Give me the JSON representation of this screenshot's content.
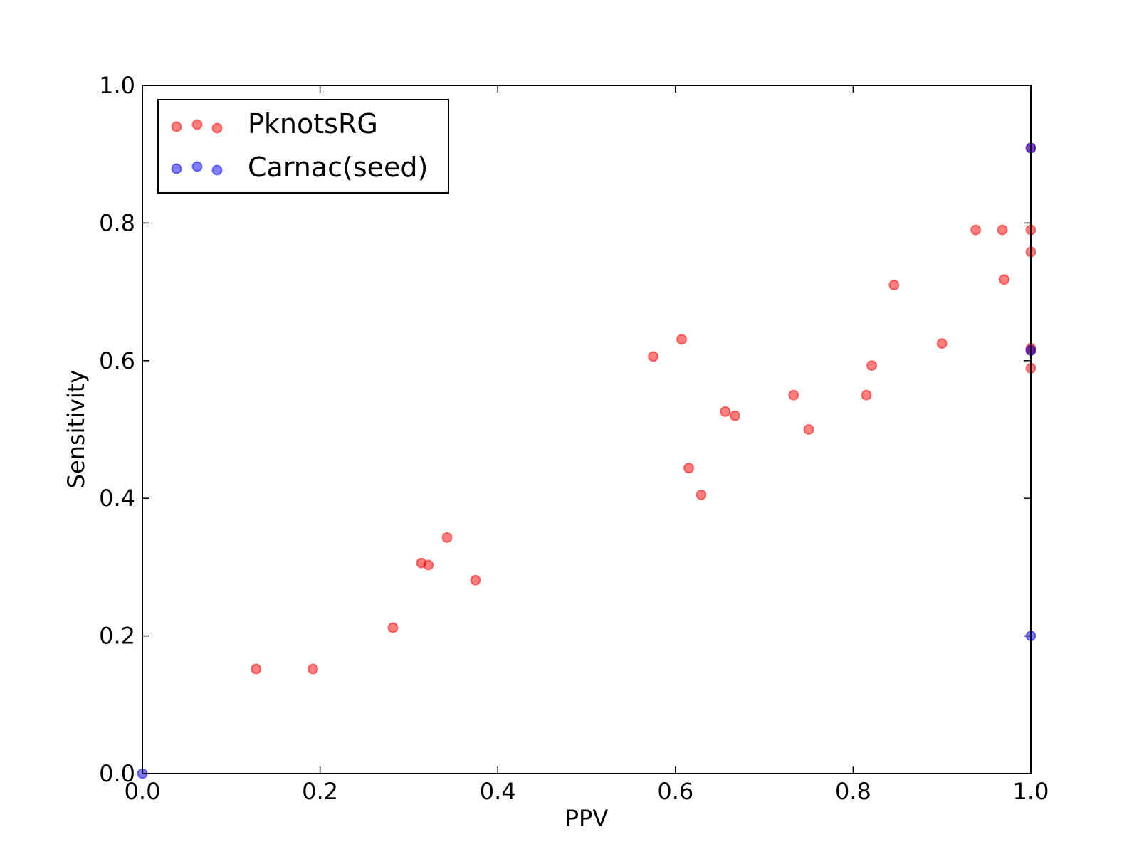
{
  "chart_data": {
    "type": "scatter",
    "title": "",
    "xlabel": "PPV",
    "ylabel": "Sensitivity",
    "xlim": [
      0.0,
      1.0
    ],
    "ylim": [
      0.0,
      1.0
    ],
    "x_ticks": [
      "0.0",
      "0.2",
      "0.4",
      "0.6",
      "0.8",
      "1.0"
    ],
    "y_ticks": [
      "0.0",
      "0.2",
      "0.4",
      "0.6",
      "0.8",
      "1.0"
    ],
    "grid": false,
    "legend_position": "top-left",
    "series": [
      {
        "name": "PknotsRG",
        "color": "#ff0000",
        "points": [
          [
            0.128,
            0.152
          ],
          [
            0.192,
            0.152
          ],
          [
            0.282,
            0.212
          ],
          [
            0.314,
            0.306
          ],
          [
            0.322,
            0.303
          ],
          [
            0.343,
            0.343
          ],
          [
            0.375,
            0.281
          ],
          [
            0.575,
            0.606
          ],
          [
            0.607,
            0.631
          ],
          [
            0.615,
            0.444
          ],
          [
            0.629,
            0.405
          ],
          [
            0.656,
            0.526
          ],
          [
            0.667,
            0.52
          ],
          [
            0.733,
            0.55
          ],
          [
            0.75,
            0.5
          ],
          [
            0.815,
            0.55
          ],
          [
            0.821,
            0.593
          ],
          [
            0.846,
            0.71
          ],
          [
            0.9,
            0.625
          ],
          [
            0.938,
            0.79
          ],
          [
            0.968,
            0.79
          ],
          [
            0.97,
            0.718
          ],
          [
            1.0,
            0.79
          ],
          [
            1.0,
            0.758
          ],
          [
            1.0,
            0.618
          ],
          [
            1.0,
            0.615
          ],
          [
            1.0,
            0.589
          ],
          [
            1.0,
            0.909
          ]
        ]
      },
      {
        "name": "Carnac(seed)",
        "color": "#0000ff",
        "points": [
          [
            0.0,
            0.0
          ],
          [
            1.0,
            0.909
          ],
          [
            1.0,
            0.615
          ],
          [
            1.0,
            0.2
          ]
        ]
      }
    ]
  }
}
